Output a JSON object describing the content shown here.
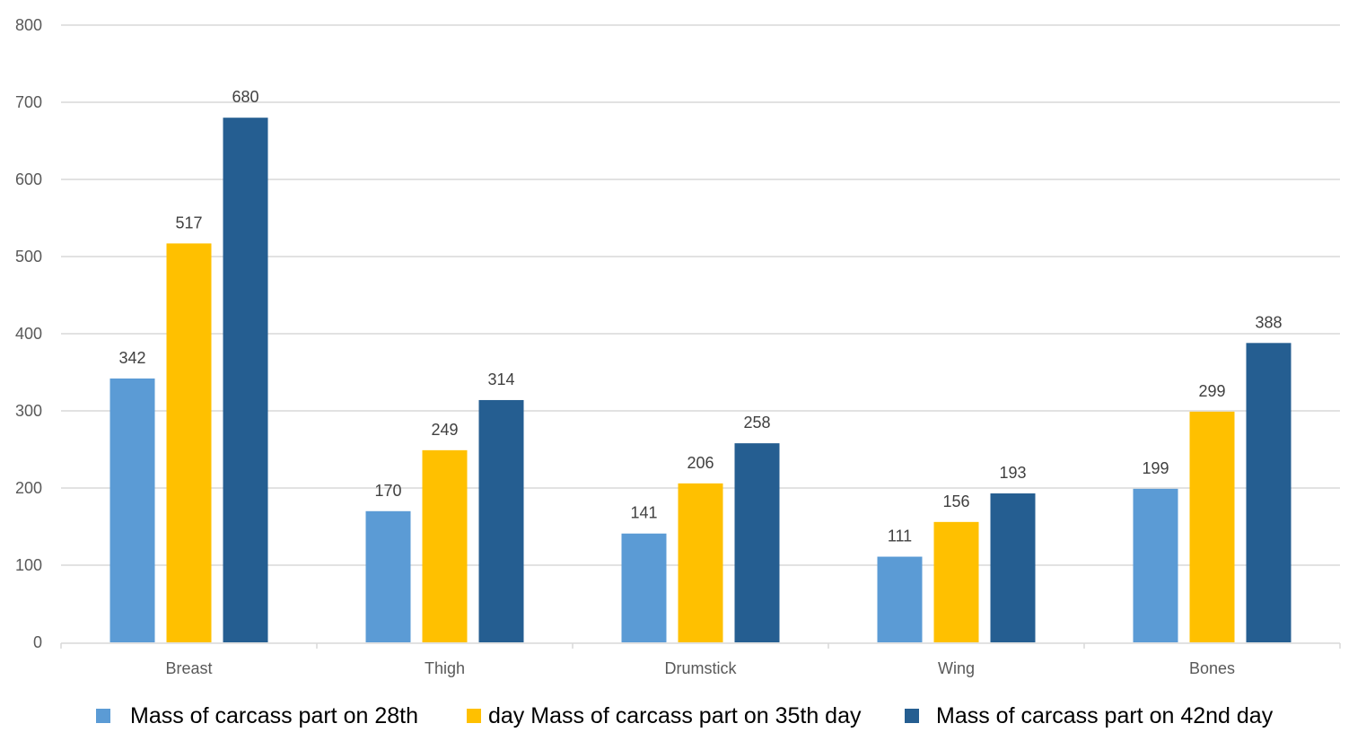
{
  "chart_data": {
    "type": "bar",
    "title": "",
    "xlabel": "",
    "ylabel": "",
    "ylim": [
      0,
      800
    ],
    "yticks": [
      0,
      100,
      200,
      300,
      400,
      500,
      600,
      700,
      800
    ],
    "grid": true,
    "legend_position": "bottom",
    "categories": [
      "Breast",
      "Thigh",
      "Drumstick",
      "Wing",
      "Bones"
    ],
    "series": [
      {
        "name": "Mass of carcass part on 28th",
        "color": "#5B9BD5",
        "values": [
          342,
          170,
          141,
          111,
          199
        ]
      },
      {
        "name": "day Mass of carcass part on 35th day",
        "color": "#FFC000",
        "values": [
          517,
          249,
          206,
          156,
          299
        ]
      },
      {
        "name": "Mass of carcass part on 42nd day",
        "color": "#255E91",
        "values": [
          680,
          314,
          258,
          193,
          388
        ]
      }
    ]
  }
}
